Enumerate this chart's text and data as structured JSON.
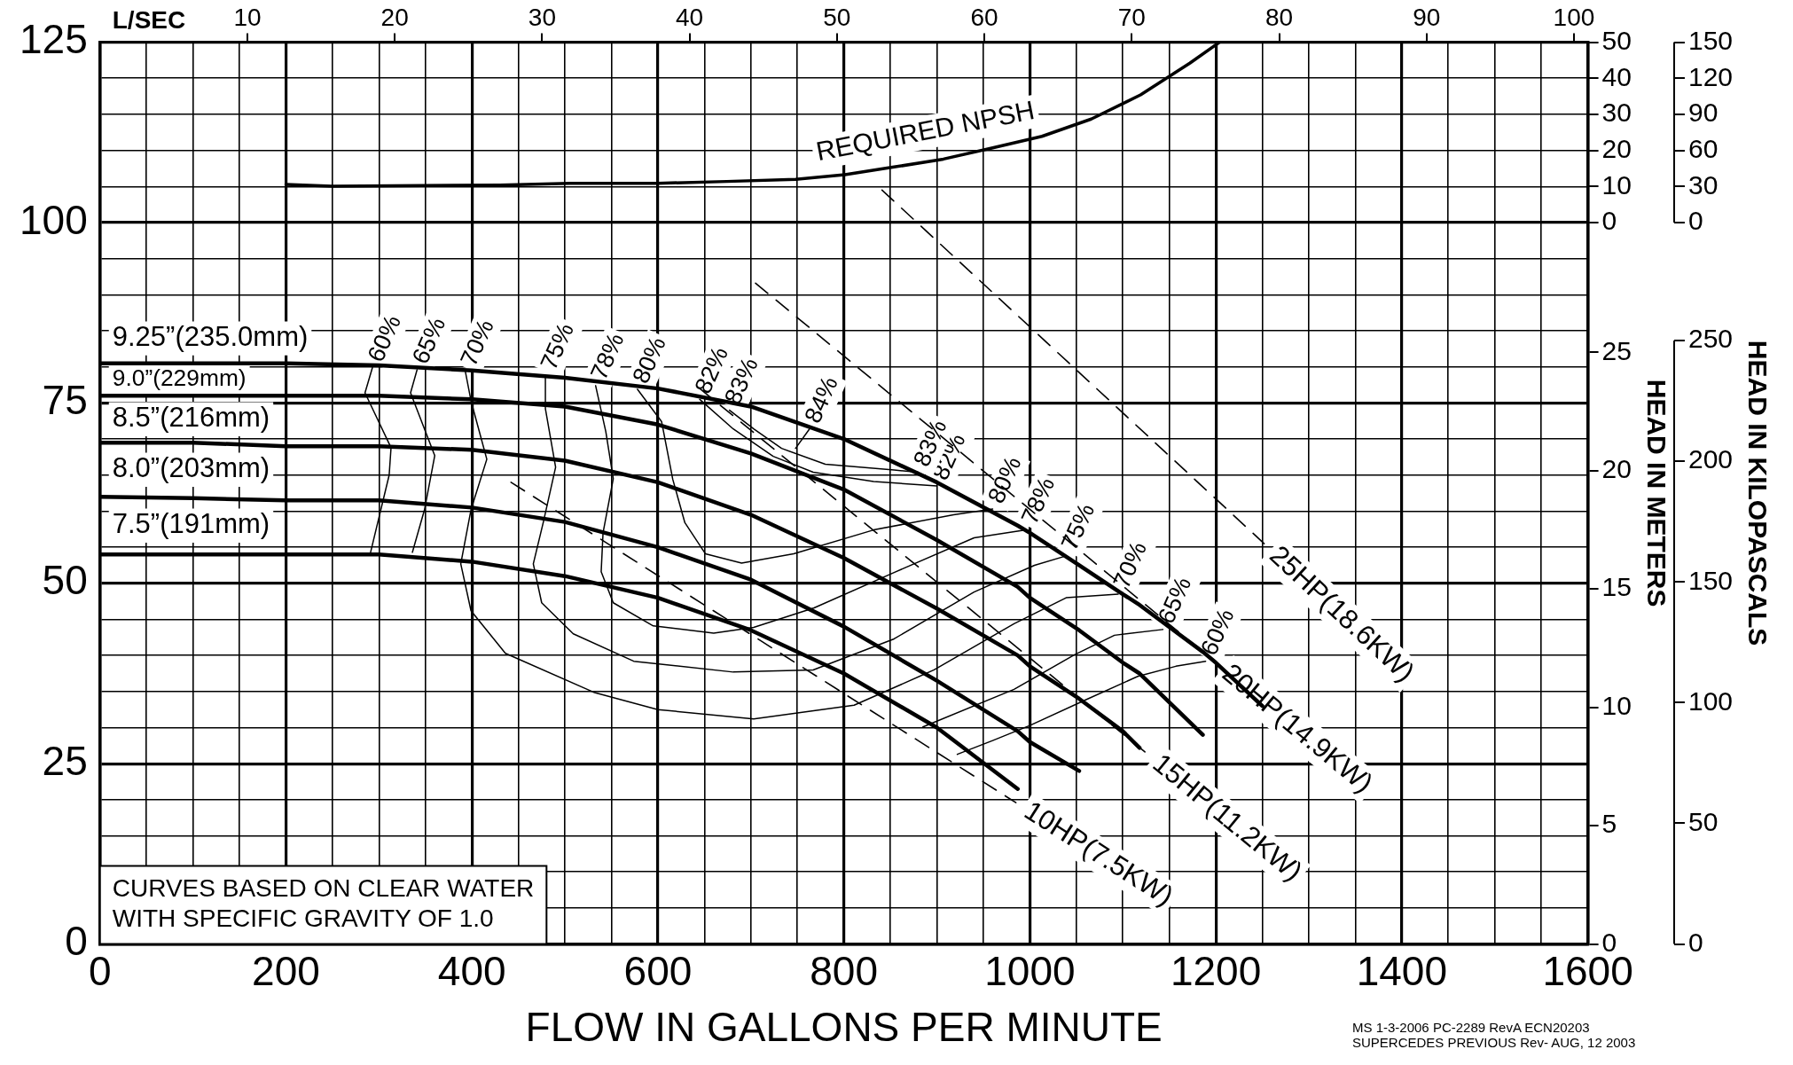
{
  "chart_data": [
    {
      "type": "line",
      "xlabel": "FLOW IN GALLONS PER MINUTE",
      "x2label": "L/SEC",
      "y2label": "HEAD IN METERS",
      "y3label": "HEAD IN KILOPASCALS",
      "annotations": [
        "CURVES BASED ON CLEAR WATER",
        "WITH SPECIFIC GRAVITY OF 1.0",
        "MS 1-3-2006 PC-2289 RevA ECN20203",
        "SUPERCEDES PREVIOUS Rev- AUG, 12 2003"
      ],
      "x": [
        0,
        100,
        200,
        300,
        400,
        500,
        600,
        700,
        800,
        900,
        987,
        1000,
        1053,
        1100,
        1118,
        1186,
        1200,
        1250
      ],
      "xlim": [
        0,
        1600
      ],
      "xticks": [
        0,
        {
          "value": 50,
          "label": null
        },
        {
          "value": 100,
          "label": null
        },
        {
          "value": 150,
          "label": null
        },
        200,
        {
          "value": 250,
          "label": null
        },
        {
          "value": 300,
          "label": null
        },
        {
          "value": 350,
          "label": null
        },
        400,
        {
          "value": 450,
          "label": null
        },
        {
          "value": 500,
          "label": null
        },
        {
          "value": 550,
          "label": null
        },
        600,
        {
          "value": 650,
          "label": null
        },
        {
          "value": 700,
          "label": null
        },
        {
          "value": 750,
          "label": null
        },
        800,
        {
          "value": 850,
          "label": null
        },
        {
          "value": 900,
          "label": null
        },
        {
          "value": 950,
          "label": null
        },
        1000,
        {
          "value": 1050,
          "label": null
        },
        {
          "value": 1100,
          "label": null
        },
        {
          "value": 1150,
          "label": null
        },
        1200,
        {
          "value": 1250,
          "label": null
        },
        {
          "value": 1300,
          "label": null
        },
        {
          "value": 1350,
          "label": null
        },
        1400,
        {
          "value": 1450,
          "label": null
        },
        {
          "value": 1500,
          "label": null
        },
        {
          "value": 1550,
          "label": null
        },
        1600
      ],
      "ylim": [
        0,
        125
      ],
      "yticks": [
        0,
        {
          "value": 5,
          "label": null
        },
        {
          "value": 10,
          "label": null
        },
        {
          "value": 15,
          "label": null
        },
        {
          "value": 20,
          "label": null
        },
        25,
        {
          "value": 30,
          "label": null
        },
        {
          "value": 35,
          "label": null
        },
        {
          "value": 40,
          "label": null
        },
        {
          "value": 45,
          "label": null
        },
        50,
        {
          "value": 55,
          "label": null
        },
        {
          "value": 60,
          "label": null
        },
        {
          "value": 65,
          "label": null
        },
        {
          "value": 70,
          "label": null
        },
        75,
        {
          "value": 80,
          "label": null
        },
        {
          "value": 85,
          "label": null
        },
        {
          "value": 90,
          "label": null
        },
        {
          "value": 95,
          "label": null
        },
        100,
        {
          "value": 105,
          "label": null
        },
        {
          "value": 110,
          "label": null
        },
        {
          "value": 115,
          "label": null
        },
        {
          "value": 120,
          "label": null
        },
        125
      ],
      "x2lim": [
        0,
        100.94
      ],
      "x2ticks": [
        10,
        20,
        30,
        40,
        50,
        60,
        70,
        80,
        90,
        100
      ],
      "y2lim": [
        0,
        38.1
      ],
      "y2ticks": [
        0,
        5,
        10,
        15,
        20,
        25
      ],
      "y3lim": [
        0,
        373.6
      ],
      "y3ticks": [
        0,
        50,
        100,
        150,
        200,
        250
      ],
      "grid": true,
      "series": [
        {
          "name": "9.25”(235.0mm)",
          "color": "#000000",
          "values": [
            80.5,
            80.5,
            80.5,
            80.2,
            79.5,
            78.5,
            77,
            74.5,
            70,
            64,
            58,
            57,
            52.5,
            48.5,
            47,
            40.5,
            39,
            33
          ]
        },
        {
          "name": "9.0”(229mm)",
          "color": "#000000",
          "values": [
            76,
            76,
            76,
            76,
            75.5,
            74.5,
            72,
            68,
            63,
            56,
            49.5,
            48,
            43.5,
            39,
            37.5,
            29,
            null,
            null
          ]
        },
        {
          "name": "8.5”(216mm)",
          "color": "#000000",
          "values": [
            69.5,
            69.5,
            69,
            69,
            68.5,
            67,
            64,
            59.5,
            53.5,
            46.5,
            40,
            38.5,
            34,
            29.5,
            27.2,
            null,
            null,
            null
          ]
        },
        {
          "name": "8.0”(203mm)",
          "color": "#000000",
          "values": [
            62,
            61.8,
            61.5,
            61.5,
            60.5,
            58.5,
            55,
            50.5,
            44,
            36.5,
            29.5,
            28,
            24,
            null,
            null,
            null,
            null,
            null
          ]
        },
        {
          "name": "7.5”(191mm)",
          "color": "#000000",
          "values": [
            54,
            54,
            54,
            54,
            53,
            51,
            48,
            43.5,
            37.5,
            30,
            21.5,
            null,
            null,
            null,
            null,
            null,
            null,
            null
          ]
        },
        {
          "name": "60%",
          "color": "#000000",
          "x": [
            293,
            285,
            313,
            311,
            291,
            600,
            922,
            960,
            1000,
            1061,
            1116,
            1157,
            1189
          ],
          "values": [
            79.9,
            76.4,
            68.8,
            65,
            54.3,
            null,
            26.3,
            28.2,
            30.3,
            33.9,
            37.1,
            38.5,
            39.2
          ]
        },
        {
          "name": "65%",
          "color": "#000000",
          "x": [
            341,
            334,
            360,
            349,
            336,
            600,
            885,
            983,
            1048,
            1091,
            1143
          ],
          "values": [
            79.6,
            76.4,
            67.7,
            60.2,
            54.3,
            null,
            30.1,
            35.3,
            40.1,
            42.8,
            43.6
          ]
        },
        {
          "name": "70%",
          "color": "#000000",
          "x": [
            393,
            399,
            416,
            399,
            388,
            399,
            436,
            531,
            600,
            703,
            811,
            897,
            983,
            1039,
            1095
          ],
          "values": [
            79.3,
            75.3,
            67.2,
            60.2,
            52.7,
            46.2,
            40.3,
            34.9,
            32.5,
            31.2,
            33.1,
            38,
            44.4,
            48,
            48.5
          ]
        },
        {
          "name": "75%",
          "color": "#000000",
          "x": [
            479,
            479,
            490,
            477,
            466,
            475,
            509,
            574,
            681,
            767,
            854,
            940,
            1005,
            1039
          ],
          "values": [
            78.8,
            74.2,
            66.1,
            58.6,
            52.7,
            47.3,
            43,
            39.2,
            37.7,
            38,
            42.3,
            48.8,
            52.5,
            53.8
          ]
        },
        {
          "name": "78%",
          "color": "#000000",
          "x": [
            533,
            544,
            552,
            541,
            539,
            552,
            595,
            660,
            703,
            768,
            854,
            940,
            996
          ],
          "values": [
            77.4,
            71,
            64.5,
            57,
            51.6,
            47.3,
            44.1,
            43.1,
            43.9,
            46.6,
            51.5,
            56.3,
            57.4
          ]
        },
        {
          "name": "80%",
          "color": "#000000",
          "x": [
            578,
            604,
            616,
            629,
            651,
            690,
            746,
            832,
            918,
            960
          ],
          "values": [
            76.9,
            72.4,
            64.4,
            58.4,
            54.1,
            52.8,
            54.1,
            57.4,
            59.5,
            60.3
          ]
        },
        {
          "name": "82%",
          "color": "#000000",
          "x": [
            645,
            681,
            724,
            767,
            832,
            900
          ],
          "values": [
            75.5,
            71.4,
            67.6,
            65.4,
            64.1,
            63.5
          ]
        },
        {
          "name": "83%",
          "color": "#000000",
          "x": [
            677,
            703,
            733,
            780,
            854,
            880
          ],
          "values": [
            74,
            71.4,
            68.7,
            66.5,
            65.7,
            65.4
          ]
        },
        {
          "name": "84%",
          "color": "#000000",
          "x": [
            748,
            763
          ],
          "values": [
            68.7,
            71.4
          ]
        },
        {
          "name": "10HP(7.5KW)",
          "color": "#000000",
          "line_style": "dashed",
          "x": [
            442,
            985
          ],
          "values": [
            64,
            19.6
          ]
        },
        {
          "name": "15HP(11.2KW)",
          "color": "#000000",
          "line_style": "dashed",
          "x": [
            645,
            1125
          ],
          "values": [
            77,
            26.5
          ]
        },
        {
          "name": "20HP(14.9KW)",
          "color": "#000000",
          "line_style": "dashed",
          "x": [
            705,
            1200
          ],
          "values": [
            91.6,
            39
          ]
        },
        {
          "name": "25HP(18.6KW)",
          "color": "#000000",
          "line_style": "dashed",
          "x": [
            841,
            1252
          ],
          "values": [
            104.5,
            55.5
          ]
        }
      ]
    },
    {
      "type": "line",
      "xlim": [
        0,
        1600
      ],
      "ylim": [
        -200,
        50
      ],
      "yticks": [
        0,
        10,
        20,
        30,
        40,
        50
      ],
      "y2lim": [
        -600,
        150
      ],
      "y2ticks": [
        0,
        30,
        60,
        90,
        120,
        150
      ],
      "tick_labels": "y",
      "series": [
        {
          "name": "REQUIRED NPSH",
          "color": "#000000",
          "x": [
            200,
            250,
            430,
            505,
            600,
            674,
            748,
            801,
            854,
            907,
            960,
            1013,
            1066,
            1119,
            1172,
            1204
          ],
          "values": [
            10.6,
            10.1,
            10.4,
            10.9,
            10.9,
            11.4,
            12,
            13.3,
            15.4,
            17.6,
            20.7,
            23.9,
            28.7,
            35.4,
            44.2,
            50
          ]
        }
      ]
    }
  ]
}
